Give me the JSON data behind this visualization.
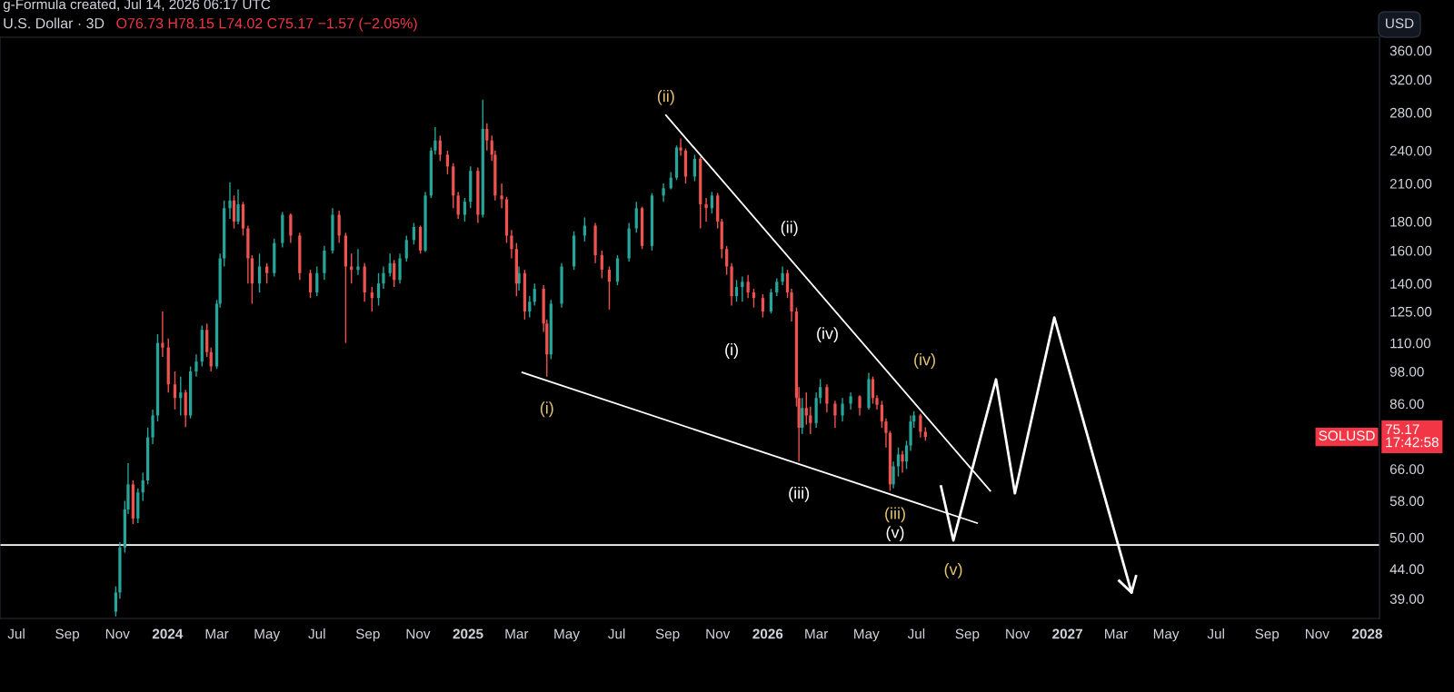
{
  "chart_data": {
    "type": "candlestick",
    "title": "U.S. Dollar · 3D",
    "subtitle": "O76.73 H78.15 L74.02 C75.17 −1.57 (−2.05%)",
    "series": [
      {
        "type": "candlestick",
        "color": "#26a69a",
        "x": [
          "2023-10-30",
          "2023-11-04",
          "2023-11-10",
          "2023-11-14",
          "2023-11-26",
          "2023-12-02",
          "2023-12-08",
          "2023-12-14",
          "2023-12-20",
          "2024-01-17",
          "2024-01-29",
          "2024-02-05",
          "2024-02-12",
          "2024-03-01",
          "2024-03-05",
          "2024-03-10",
          "2024-03-17",
          "2024-03-27",
          "2024-04-22",
          "2024-05-10",
          "2024-05-20",
          "2024-07-01",
          "2024-07-10",
          "2024-07-20",
          "2024-08-20",
          "2024-09-14",
          "2024-09-20",
          "2024-09-28",
          "2024-10-10",
          "2024-10-18",
          "2024-10-27",
          "2024-11-10",
          "2024-11-17",
          "2024-11-22",
          "2024-12-28",
          "2025-01-04",
          "2025-01-19",
          "2025-03-04",
          "2025-03-17",
          "2025-03-23",
          "2025-04-12",
          "2025-04-25",
          "2025-05-10",
          "2025-05-23",
          "2025-07-02",
          "2025-07-16",
          "2025-07-25",
          "2025-08-13",
          "2025-08-27",
          "2025-09-05",
          "2025-09-12",
          "2025-10-04",
          "2025-10-25",
          "2025-11-24",
          "2025-12-01",
          "2026-01-05",
          "2026-01-12",
          "2026-01-19",
          "2026-02-12",
          "2026-03-01",
          "2026-03-06",
          "2026-04-02",
          "2026-04-12",
          "2026-05-04",
          "2026-06-03",
          "2026-06-09",
          "2026-06-19",
          "2026-06-24",
          "2026-06-28"
        ],
        "ohlc": [
          [
            37,
            41,
            36.3,
            40
          ],
          [
            40,
            49,
            39,
            48
          ],
          [
            48,
            58,
            47,
            56
          ],
          [
            56,
            67.6,
            55,
            62
          ],
          [
            54,
            61,
            53,
            60
          ],
          [
            60,
            65,
            58,
            63
          ],
          [
            63,
            78,
            62,
            75
          ],
          [
            75,
            84,
            73,
            82
          ],
          [
            82,
            114,
            80,
            110
          ],
          [
            88,
            96,
            82,
            90
          ],
          [
            82,
            100,
            81,
            98
          ],
          [
            98,
            105,
            96,
            102
          ],
          [
            102,
            118,
            100,
            116
          ],
          [
            100,
            131,
            99,
            129
          ],
          [
            129,
            158,
            127,
            155
          ],
          [
            155,
            196,
            150,
            190
          ],
          [
            190,
            211,
            182,
            196
          ],
          [
            180,
            205,
            178,
            193
          ],
          [
            140,
            158,
            135,
            150
          ],
          [
            146,
            168,
            144,
            165
          ],
          [
            165,
            187,
            162,
            185
          ],
          [
            135,
            150,
            133,
            146
          ],
          [
            146,
            163,
            142,
            160
          ],
          [
            160,
            190,
            158,
            185
          ],
          [
            148,
            161,
            145,
            150
          ],
          [
            132,
            146,
            128,
            140
          ],
          [
            140,
            150,
            137,
            146
          ],
          [
            146,
            158,
            144,
            152
          ],
          [
            142,
            158,
            140,
            155
          ],
          [
            155,
            170,
            153,
            167
          ],
          [
            167,
            179,
            164,
            176
          ],
          [
            160,
            203,
            159,
            200
          ],
          [
            200,
            243,
            198,
            240
          ],
          [
            240,
            264,
            236,
            250
          ],
          [
            185,
            198,
            180,
            195
          ],
          [
            195,
            225,
            190,
            221
          ],
          [
            185,
            295,
            183,
            262
          ],
          [
            140,
            150,
            136,
            146
          ],
          [
            125,
            133,
            122,
            130
          ],
          [
            130,
            140,
            128,
            137
          ],
          [
            105,
            131,
            103,
            129
          ],
          [
            129,
            152,
            127,
            150
          ],
          [
            150,
            173,
            148,
            170
          ],
          [
            170,
            183,
            166,
            177
          ],
          [
            141,
            157,
            139,
            155
          ],
          [
            155,
            179,
            153,
            175
          ],
          [
            175,
            195,
            172,
            190
          ],
          [
            163,
            202,
            160,
            200
          ],
          [
            200,
            210,
            195,
            206
          ],
          [
            206,
            220,
            205,
            215
          ],
          [
            215,
            245,
            213,
            243
          ],
          [
            216,
            236,
            212,
            232
          ],
          [
            190,
            203,
            186,
            200
          ],
          [
            133,
            142,
            130,
            138
          ],
          [
            138,
            144,
            130,
            141
          ],
          [
            125,
            137,
            124,
            135
          ],
          [
            135,
            143,
            133,
            141
          ],
          [
            141,
            150,
            139,
            146
          ],
          [
            78,
            88,
            76,
            84.5
          ],
          [
            79.5,
            90,
            78,
            88
          ],
          [
            88,
            95,
            86,
            92
          ],
          [
            82,
            88,
            80,
            86
          ],
          [
            86,
            90,
            84,
            88.6
          ],
          [
            84.5,
            97.5,
            84,
            95
          ],
          [
            62,
            68,
            61,
            66.7
          ],
          [
            66.7,
            72,
            64,
            70
          ],
          [
            68,
            74,
            66,
            72.6
          ],
          [
            72.6,
            82,
            71,
            80
          ],
          [
            80,
            83.4,
            78,
            82
          ]
        ]
      },
      {
        "type": "candlestick",
        "color": "#ef5350",
        "x": [
          "2023-11-20",
          "2023-12-26",
          "2024-01-02",
          "2024-01-10",
          "2024-01-23",
          "2024-02-18",
          "2024-02-23",
          "2024-03-22",
          "2024-04-02",
          "2024-04-08",
          "2024-04-13",
          "2024-05-01",
          "2024-05-30",
          "2024-06-10",
          "2024-06-23",
          "2024-07-28",
          "2024-08-05",
          "2024-08-12",
          "2024-08-28",
          "2024-09-06",
          "2024-10-03",
          "2024-11-04",
          "2024-11-28",
          "2024-12-07",
          "2024-12-14",
          "2024-12-20",
          "2025-01-13",
          "2025-01-24",
          "2025-01-30",
          "2025-02-03",
          "2025-02-11",
          "2025-02-17",
          "2025-02-23",
          "2025-03-01",
          "2025-03-11",
          "2025-04-03",
          "2025-04-07",
          "2025-06-05",
          "2025-06-13",
          "2025-06-22",
          "2025-08-01",
          "2025-09-17",
          "2025-09-23",
          "2025-10-11",
          "2025-10-18",
          "2025-11-01",
          "2025-11-06",
          "2025-11-12",
          "2025-11-18",
          "2025-12-08",
          "2025-12-15",
          "2025-12-26",
          "2026-01-25",
          "2026-01-30",
          "2026-02-05",
          "2026-02-08",
          "2026-02-17",
          "2026-02-22",
          "2026-03-14",
          "2026-03-24",
          "2026-04-23",
          "2026-05-09",
          "2026-05-14",
          "2026-05-20",
          "2026-05-25",
          "2026-05-30",
          "2026-06-14",
          "2026-07-06",
          "2026-07-12"
        ],
        "ohlc": [
          [
            62,
            63,
            52.8,
            54
          ],
          [
            110,
            125,
            104,
            108
          ],
          [
            108,
            112,
            90,
            93
          ],
          [
            93,
            98,
            84,
            88
          ],
          [
            90,
            91,
            78.2,
            82
          ],
          [
            116,
            119,
            104,
            106
          ],
          [
            106,
            108,
            98,
            100
          ],
          [
            196,
            200,
            175,
            180
          ],
          [
            193,
            195,
            170,
            175
          ],
          [
            175,
            177,
            140,
            155
          ],
          [
            155,
            157,
            129,
            140
          ],
          [
            150,
            152,
            140,
            146
          ],
          [
            185,
            186,
            165,
            170
          ],
          [
            170,
            172,
            142,
            146
          ],
          [
            146,
            148,
            132,
            135
          ],
          [
            185,
            188,
            165,
            170
          ],
          [
            170,
            172,
            110,
            150
          ],
          [
            150,
            158,
            140,
            148
          ],
          [
            150,
            152,
            130,
            135
          ],
          [
            135,
            138,
            125,
            132
          ],
          [
            152,
            154,
            138,
            142
          ],
          [
            176,
            177,
            158,
            160
          ],
          [
            250,
            255,
            230,
            236
          ],
          [
            236,
            240,
            218,
            225
          ],
          [
            225,
            228,
            190,
            200
          ],
          [
            200,
            203,
            182,
            185
          ],
          [
            221,
            224,
            179,
            185
          ],
          [
            262,
            268,
            240,
            250
          ],
          [
            250,
            255,
            230,
            236
          ],
          [
            236,
            240,
            196,
            200
          ],
          [
            200,
            210,
            190,
            197
          ],
          [
            197,
            199,
            165,
            170
          ],
          [
            170,
            174,
            155,
            161
          ],
          [
            161,
            165,
            133,
            140
          ],
          [
            146,
            148,
            121,
            125
          ],
          [
            137,
            139,
            115,
            119
          ],
          [
            119,
            121,
            96,
            105
          ],
          [
            177,
            179,
            152,
            157
          ],
          [
            157,
            160,
            143,
            148
          ],
          [
            148,
            150,
            126,
            141
          ],
          [
            190,
            191,
            161,
            163
          ],
          [
            243,
            252,
            235,
            240
          ],
          [
            240,
            242,
            210,
            216
          ],
          [
            232,
            234,
            175,
            193
          ],
          [
            193,
            198,
            180,
            190
          ],
          [
            200,
            202,
            175,
            180
          ],
          [
            180,
            182,
            155,
            161
          ],
          [
            161,
            163,
            145,
            150
          ],
          [
            150,
            152,
            128,
            133
          ],
          [
            141,
            145,
            132,
            135
          ],
          [
            135,
            137,
            127,
            132
          ],
          [
            132,
            134,
            122,
            125
          ],
          [
            146,
            148,
            132,
            135
          ],
          [
            135,
            137,
            120,
            125
          ],
          [
            125,
            127,
            85,
            88
          ],
          [
            88,
            92,
            68,
            78
          ],
          [
            84.5,
            90,
            79,
            82
          ],
          [
            82,
            85,
            76,
            79.5
          ],
          [
            92,
            93,
            83,
            86
          ],
          [
            86,
            87,
            78,
            82
          ],
          [
            88.6,
            89,
            82,
            84.5
          ],
          [
            95,
            96,
            86,
            88
          ],
          [
            88,
            89,
            84,
            85.6
          ],
          [
            85.6,
            87,
            78,
            80
          ],
          [
            80,
            81,
            72,
            76.4
          ],
          [
            76.4,
            77,
            60.4,
            62
          ],
          [
            70,
            71,
            65,
            68
          ],
          [
            82,
            82.5,
            75,
            76.73
          ],
          [
            76.73,
            78.15,
            74.02,
            75.17
          ]
        ]
      },
      {
        "type": "line",
        "color": "#ffffff",
        "x": [
          "2025-08-30",
          "2026-09-29"
        ],
        "values": [
          277,
          60.4
        ]
      },
      {
        "type": "line",
        "color": "#ffffff",
        "x": [
          "2025-03-08",
          "2026-09-13"
        ],
        "values": [
          97.6,
          53.0
        ]
      },
      {
        "type": "line",
        "color": "#ffffff",
        "x": [
          "2026-07-31",
          "2026-08-15",
          "2026-10-06",
          "2026-10-29",
          "2026-12-16",
          "2027-03-20"
        ],
        "values": [
          61.5,
          49.4,
          94.9,
          59.8,
          122,
          40.0
        ]
      }
    ],
    "ref_lines": [
      {
        "axis": "y",
        "value": 48.5,
        "color": "#ffffff"
      }
    ],
    "annotations": [
      "g-Formula created, Jul 14, 2026 06:17 UTC",
      "USD",
      "SOLUSD",
      "75.17\n17:42:58",
      {
        "text": "(ii)",
        "x": "2025-08-30",
        "y": 277
      },
      {
        "text": "(ii)",
        "x": "2026-01-12",
        "y": 164.5
      },
      {
        "text": "(i)",
        "x": "2025-11-18",
        "y": 128
      },
      {
        "text": "(i)",
        "x": "2025-04-07",
        "y": 96
      },
      {
        "text": "(iii)",
        "x": "2026-02-08",
        "y": 68
      },
      {
        "text": "(iv)",
        "x": "2026-05-09",
        "y": 104.8
      },
      {
        "text": "(iv)",
        "x": "2026-07-05",
        "y": 84.2
      },
      {
        "text": "(iii)",
        "x": "2026-05-30",
        "y": 60.4
      },
      {
        "text": "(v)",
        "x": "2026-05-30",
        "y": 48.5
      },
      {
        "text": "(v)",
        "x": "2026-08-15",
        "y": 49.4
      }
    ],
    "log": true,
    "xlim": [
      "2023-06-11",
      "2028-01-16"
    ],
    "xticks": [
      {
        "value": "2023-07-01",
        "label": "Jul"
      },
      {
        "value": "2023-09-01",
        "label": "Sep"
      },
      {
        "value": "2023-11-01",
        "label": "Nov"
      },
      {
        "value": "2024-01-01",
        "label": "2024"
      },
      {
        "value": "2024-03-01",
        "label": "Mar"
      },
      {
        "value": "2024-05-01",
        "label": "May"
      },
      {
        "value": "2024-07-01",
        "label": "Jul"
      },
      {
        "value": "2024-09-01",
        "label": "Sep"
      },
      {
        "value": "2024-11-01",
        "label": "Nov"
      },
      {
        "value": "2025-01-01",
        "label": "2025"
      },
      {
        "value": "2025-03-01",
        "label": "Mar"
      },
      {
        "value": "2025-05-01",
        "label": "May"
      },
      {
        "value": "2025-07-01",
        "label": "Jul"
      },
      {
        "value": "2025-09-01",
        "label": "Sep"
      },
      {
        "value": "2025-11-01",
        "label": "Nov"
      },
      {
        "value": "2026-01-01",
        "label": "2026"
      },
      {
        "value": "2026-03-01",
        "label": "Mar"
      },
      {
        "value": "2026-05-01",
        "label": "May"
      },
      {
        "value": "2026-07-01",
        "label": "Jul"
      },
      {
        "value": "2026-09-01",
        "label": "Sep"
      },
      {
        "value": "2026-11-01",
        "label": "Nov"
      },
      {
        "value": "2027-01-01",
        "label": "2027"
      },
      {
        "value": "2027-03-01",
        "label": "Mar"
      },
      {
        "value": "2027-05-01",
        "label": "May"
      },
      {
        "value": "2027-07-01",
        "label": "Jul"
      },
      {
        "value": "2027-09-01",
        "label": "Sep"
      },
      {
        "value": "2027-11-01",
        "label": "Nov"
      },
      {
        "value": "2028-01-01",
        "label": "2028"
      }
    ],
    "ylim": [
      36,
      380
    ],
    "yticks": [
      {
        "value": 39,
        "label": "39.00"
      },
      {
        "value": 44,
        "label": "44.00"
      },
      {
        "value": 50,
        "label": "50.00"
      },
      {
        "value": 58,
        "label": "58.00"
      },
      {
        "value": 66,
        "label": "66.00"
      },
      {
        "value": 86,
        "label": "86.00"
      },
      {
        "value": 98,
        "label": "98.00"
      },
      {
        "value": 110,
        "label": "110.00"
      },
      {
        "value": 125,
        "label": "125.00"
      },
      {
        "value": 140,
        "label": "140.00"
      },
      {
        "value": 160,
        "label": "160.00"
      },
      {
        "value": 180,
        "label": "180.00"
      },
      {
        "value": 210,
        "label": "210.00"
      },
      {
        "value": 240,
        "label": "240.00"
      },
      {
        "value": 280,
        "label": "280.00"
      },
      {
        "value": 320,
        "label": "320.00"
      },
      {
        "value": 360,
        "label": "360.00"
      }
    ],
    "grid": false
  }
}
